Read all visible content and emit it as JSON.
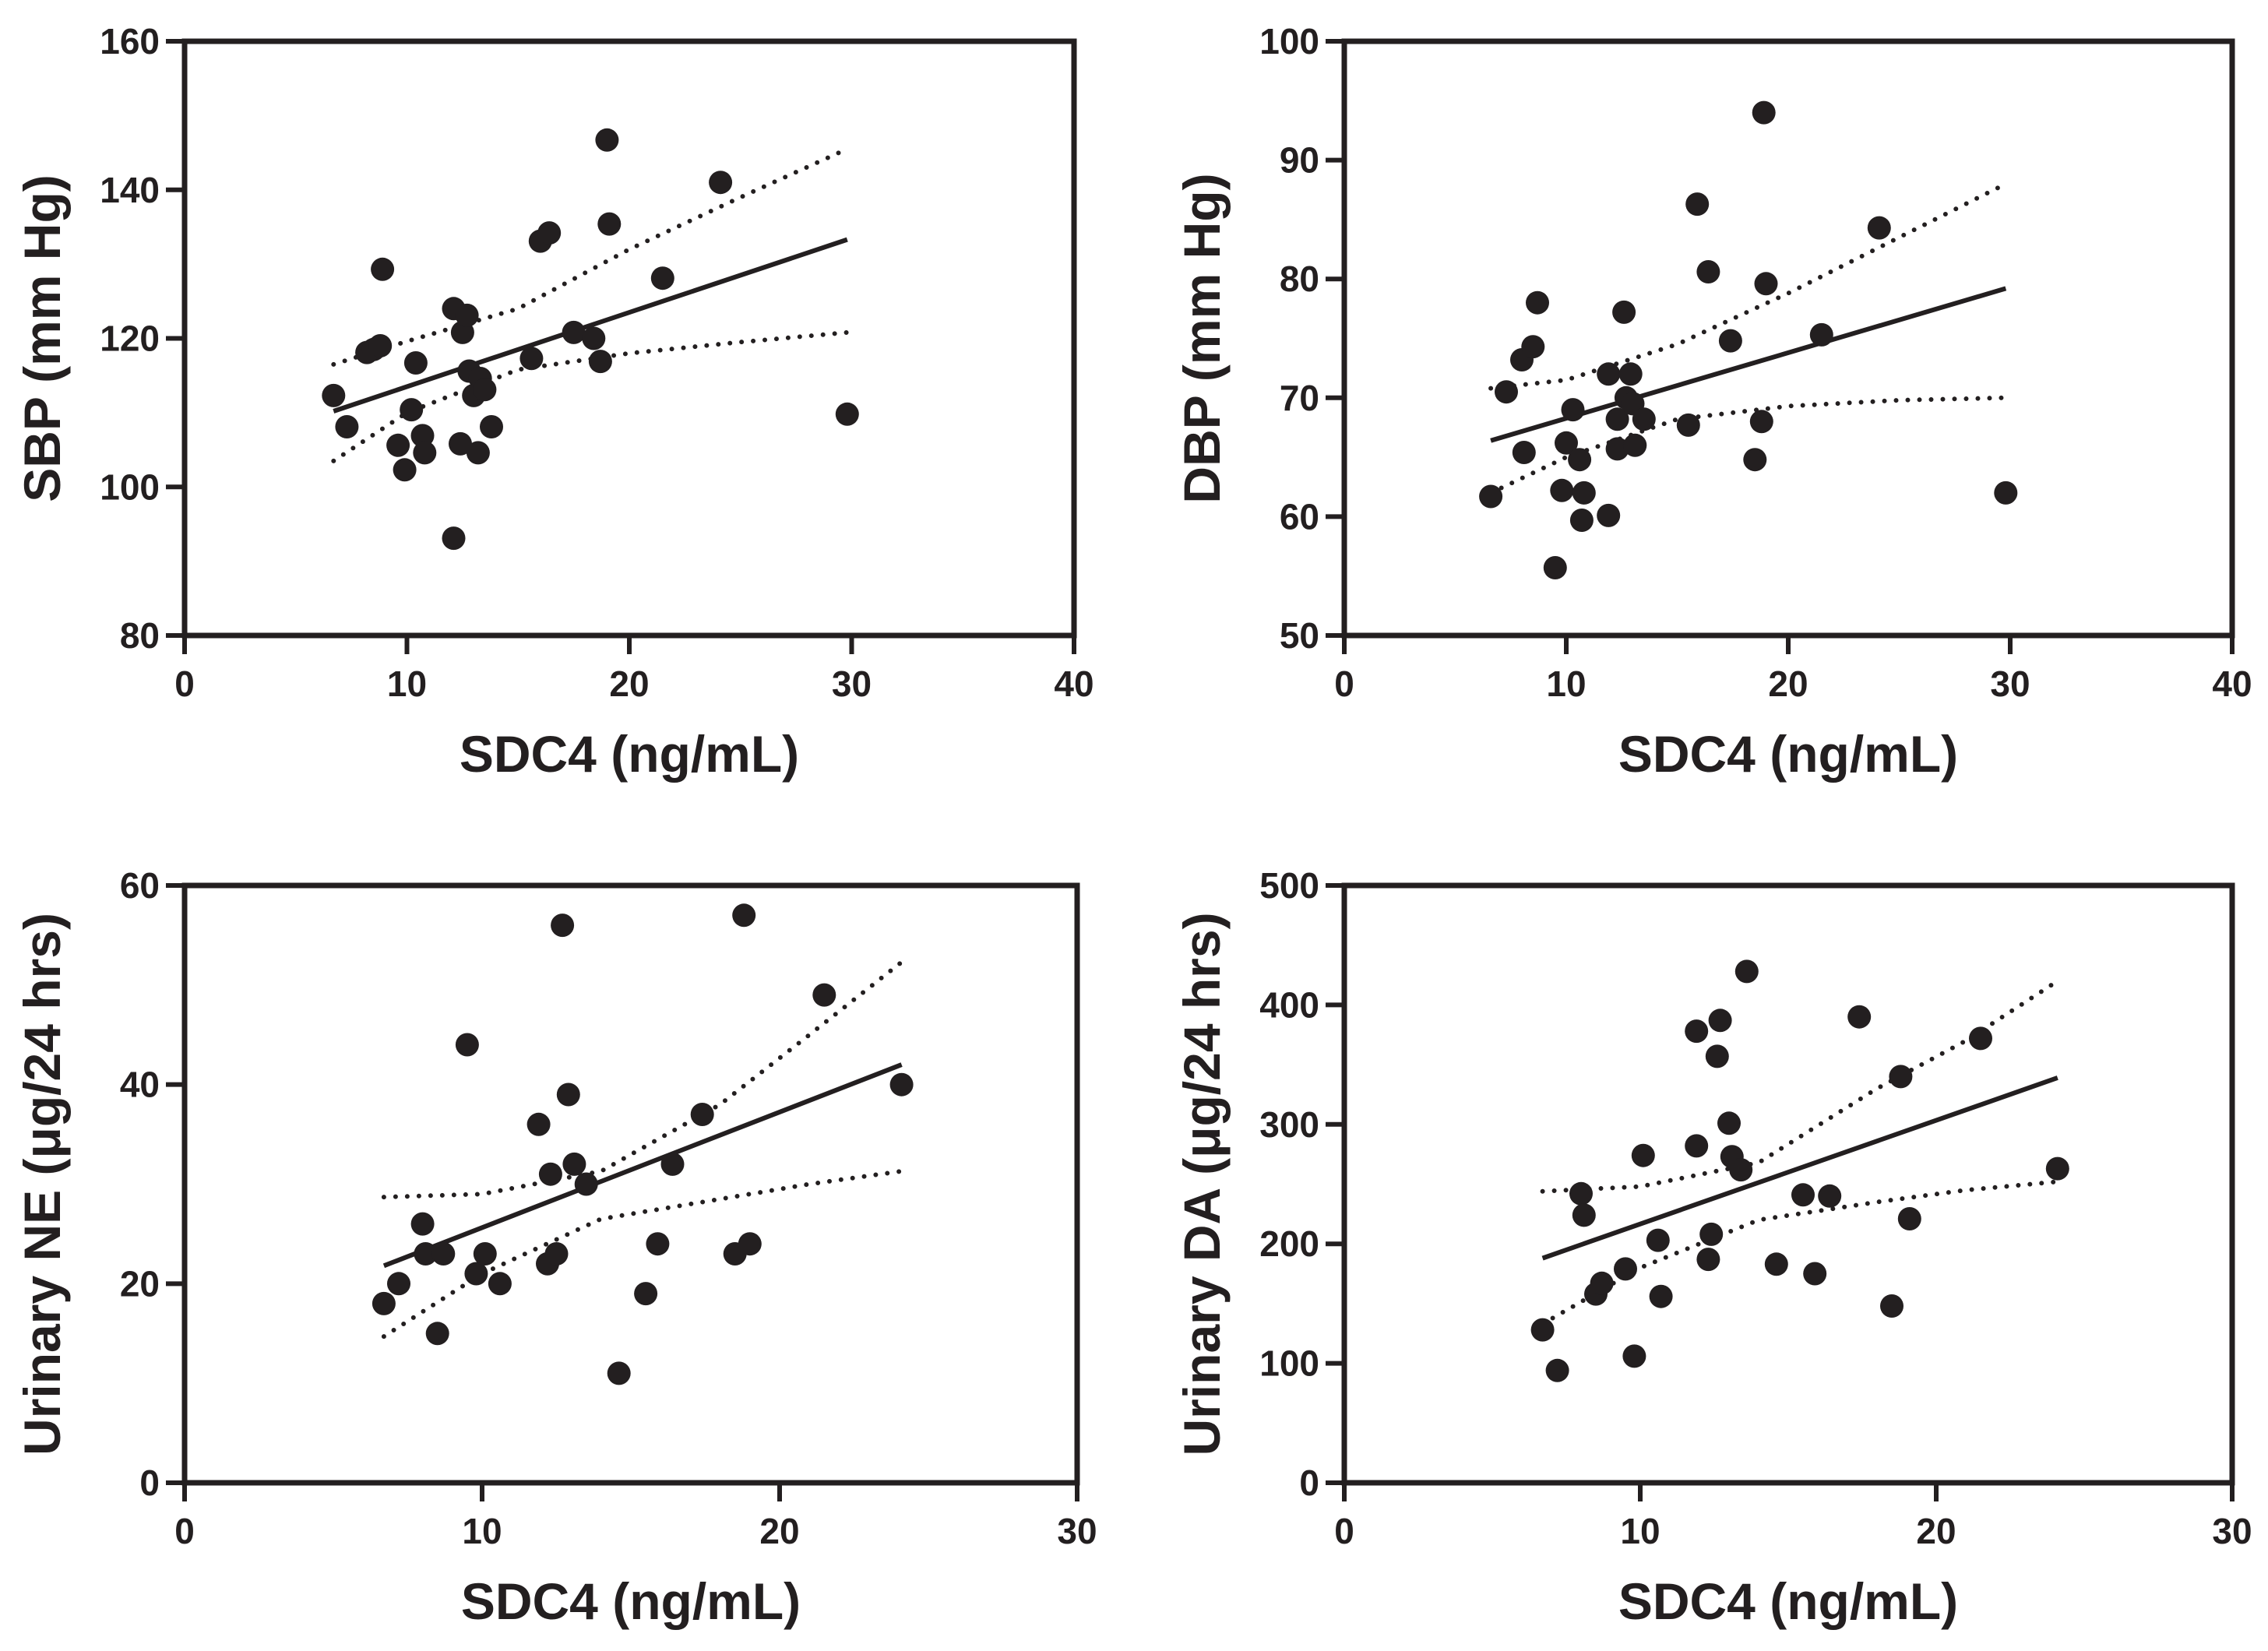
{
  "chart_data": [
    {
      "id": "sbp",
      "type": "scatter",
      "title": "",
      "xlabel": "SDC4 (ng/mL)",
      "ylabel": "SBP (mm Hg)",
      "xlim": [
        0,
        40
      ],
      "ylim": [
        80,
        160
      ],
      "xticks": [
        0,
        10,
        20,
        30,
        40
      ],
      "yticks": [
        80,
        100,
        120,
        140,
        160
      ],
      "x_tick_labels": [
        "0",
        "10",
        "20",
        "30",
        "40"
      ],
      "y_tick_labels": [
        "80",
        "100",
        "120",
        "140",
        "160"
      ],
      "points": [
        [
          6.7,
          112.3
        ],
        [
          7.3,
          108.1
        ],
        [
          8.2,
          118.1
        ],
        [
          8.5,
          118.5
        ],
        [
          8.8,
          119.0
        ],
        [
          8.9,
          129.3
        ],
        [
          9.6,
          105.6
        ],
        [
          9.9,
          102.3
        ],
        [
          10.2,
          110.4
        ],
        [
          10.4,
          116.7
        ],
        [
          10.7,
          106.9
        ],
        [
          10.8,
          104.6
        ],
        [
          12.1,
          124.0
        ],
        [
          12.1,
          93.1
        ],
        [
          12.4,
          105.8
        ],
        [
          12.5,
          120.8
        ],
        [
          12.7,
          123.1
        ],
        [
          12.8,
          115.6
        ],
        [
          13.0,
          112.3
        ],
        [
          13.2,
          104.6
        ],
        [
          13.3,
          114.6
        ],
        [
          13.5,
          113.1
        ],
        [
          13.8,
          108.1
        ],
        [
          15.6,
          117.3
        ],
        [
          16.0,
          133.1
        ],
        [
          16.4,
          134.2
        ],
        [
          17.5,
          120.8
        ],
        [
          18.4,
          120.0
        ],
        [
          18.7,
          116.9
        ],
        [
          19.0,
          146.7
        ],
        [
          19.1,
          135.4
        ],
        [
          21.5,
          128.1
        ],
        [
          24.1,
          141.0
        ],
        [
          29.8,
          109.8
        ]
      ],
      "fit": {
        "x": [
          6.7,
          29.8
        ],
        "y": [
          110.2,
          133.3
        ]
      },
      "ci_upper": {
        "x": [
          6.7,
          10.0,
          15.0,
          20.0,
          25.0,
          29.8
        ],
        "y": [
          116.5,
          119.6,
          124.0,
          132.0,
          139.0,
          145.5
        ]
      },
      "ci_lower": {
        "x": [
          6.7,
          10.0,
          15.0,
          20.0,
          25.0,
          29.8
        ],
        "y": [
          103.5,
          110.0,
          115.8,
          118.0,
          119.5,
          120.8
        ]
      }
    },
    {
      "id": "dbp",
      "type": "scatter",
      "title": "",
      "xlabel": "SDC4 (ng/mL)",
      "ylabel": "DBP (mm Hg)",
      "xlim": [
        0,
        40
      ],
      "ylim": [
        50,
        100
      ],
      "xticks": [
        0,
        10,
        20,
        30,
        40
      ],
      "yticks": [
        50,
        60,
        70,
        80,
        90,
        100
      ],
      "x_tick_labels": [
        "0",
        "10",
        "20",
        "30",
        "40"
      ],
      "y_tick_labels": [
        "50",
        "60",
        "70",
        "80",
        "90",
        "100"
      ],
      "points": [
        [
          6.6,
          61.7
        ],
        [
          7.3,
          70.5
        ],
        [
          8.0,
          73.2
        ],
        [
          8.1,
          65.4
        ],
        [
          8.5,
          74.3
        ],
        [
          8.7,
          78.0
        ],
        [
          9.5,
          55.7
        ],
        [
          9.8,
          62.2
        ],
        [
          10.0,
          66.2
        ],
        [
          10.3,
          69.0
        ],
        [
          10.6,
          64.8
        ],
        [
          10.7,
          59.7
        ],
        [
          10.8,
          62.0
        ],
        [
          11.9,
          72.0
        ],
        [
          11.9,
          60.1
        ],
        [
          12.3,
          65.7
        ],
        [
          12.3,
          68.2
        ],
        [
          12.6,
          77.2
        ],
        [
          12.7,
          70.0
        ],
        [
          12.9,
          72.0
        ],
        [
          13.0,
          69.5
        ],
        [
          13.1,
          66.0
        ],
        [
          13.5,
          68.2
        ],
        [
          15.5,
          67.7
        ],
        [
          15.9,
          86.3
        ],
        [
          16.4,
          80.6
        ],
        [
          17.4,
          74.8
        ],
        [
          18.5,
          64.8
        ],
        [
          18.8,
          68.0
        ],
        [
          18.9,
          94.0
        ],
        [
          19.0,
          79.6
        ],
        [
          21.5,
          75.3
        ],
        [
          24.1,
          84.3
        ],
        [
          29.8,
          62.0
        ]
      ],
      "fit": {
        "x": [
          6.6,
          29.8
        ],
        "y": [
          66.4,
          79.2
        ]
      },
      "ci_upper": {
        "x": [
          6.6,
          10.0,
          15.0,
          20.0,
          25.0,
          29.8
        ],
        "y": [
          70.8,
          71.5,
          74.5,
          78.8,
          83.5,
          88.0
        ]
      },
      "ci_lower": {
        "x": [
          6.6,
          10.0,
          15.0,
          20.0,
          25.0,
          29.8
        ],
        "y": [
          62.0,
          65.0,
          68.2,
          69.3,
          69.8,
          70.0
        ]
      }
    },
    {
      "id": "ne",
      "type": "scatter",
      "title": "",
      "xlabel": "SDC4 (ng/mL)",
      "ylabel": "Urinary NE (μg/24 hrs)",
      "xlim": [
        0,
        30
      ],
      "ylim": [
        0,
        60
      ],
      "xticks": [
        0,
        10,
        20,
        30
      ],
      "yticks": [
        0,
        20,
        40,
        60
      ],
      "x_tick_labels": [
        "0",
        "10",
        "20",
        "30"
      ],
      "y_tick_labels": [
        "0",
        "20",
        "40",
        "60"
      ],
      "points": [
        [
          6.7,
          18
        ],
        [
          7.2,
          20
        ],
        [
          8.0,
          26
        ],
        [
          8.1,
          23
        ],
        [
          8.5,
          15
        ],
        [
          8.7,
          23
        ],
        [
          9.5,
          44
        ],
        [
          9.8,
          21
        ],
        [
          10.1,
          23
        ],
        [
          10.6,
          20
        ],
        [
          11.9,
          36
        ],
        [
          12.2,
          22
        ],
        [
          12.3,
          31
        ],
        [
          12.5,
          23
        ],
        [
          12.7,
          56
        ],
        [
          12.9,
          39
        ],
        [
          13.1,
          32
        ],
        [
          13.5,
          30
        ],
        [
          14.6,
          11
        ],
        [
          15.5,
          19
        ],
        [
          15.9,
          24
        ],
        [
          16.4,
          32
        ],
        [
          17.4,
          37
        ],
        [
          18.5,
          23
        ],
        [
          18.8,
          57
        ],
        [
          19.0,
          24
        ],
        [
          21.5,
          49
        ],
        [
          24.1,
          40
        ]
      ],
      "fit": {
        "x": [
          6.7,
          24.1
        ],
        "y": [
          21.8,
          42.0
        ]
      },
      "ci_upper": {
        "x": [
          6.7,
          10.0,
          14.0,
          18.0,
          21.0,
          24.1
        ],
        "y": [
          28.7,
          29.0,
          31.3,
          38.0,
          45.0,
          52.3
        ]
      },
      "ci_lower": {
        "x": [
          6.7,
          10.0,
          14.0,
          18.0,
          21.0,
          24.1
        ],
        "y": [
          14.7,
          21.0,
          26.5,
          28.5,
          30.0,
          31.3
        ]
      }
    },
    {
      "id": "da",
      "type": "scatter",
      "title": "",
      "xlabel": "SDC4 (ng/mL)",
      "ylabel": "Urinary DA (μg/24 hrs)",
      "xlim": [
        0,
        30
      ],
      "ylim": [
        0,
        500
      ],
      "xticks": [
        0,
        10,
        20,
        30
      ],
      "yticks": [
        0,
        100,
        200,
        300,
        400,
        500
      ],
      "x_tick_labels": [
        "0",
        "10",
        "20",
        "30"
      ],
      "y_tick_labels": [
        "0",
        "100",
        "200",
        "300",
        "400",
        "500"
      ],
      "points": [
        [
          6.7,
          128
        ],
        [
          7.2,
          94
        ],
        [
          8.0,
          242
        ],
        [
          8.1,
          224
        ],
        [
          8.5,
          158
        ],
        [
          8.7,
          167
        ],
        [
          9.5,
          179
        ],
        [
          9.8,
          106
        ],
        [
          10.1,
          274
        ],
        [
          10.6,
          203
        ],
        [
          10.7,
          156
        ],
        [
          11.9,
          282
        ],
        [
          11.9,
          378
        ],
        [
          12.3,
          187
        ],
        [
          12.4,
          208
        ],
        [
          12.6,
          357
        ],
        [
          12.7,
          387
        ],
        [
          13.0,
          301
        ],
        [
          13.1,
          273
        ],
        [
          13.4,
          262
        ],
        [
          13.6,
          428
        ],
        [
          14.6,
          183
        ],
        [
          15.5,
          241
        ],
        [
          15.9,
          175
        ],
        [
          16.4,
          240
        ],
        [
          17.4,
          390
        ],
        [
          18.5,
          148
        ],
        [
          18.8,
          340
        ],
        [
          19.1,
          221
        ],
        [
          21.5,
          372
        ],
        [
          24.1,
          263
        ]
      ],
      "fit": {
        "x": [
          6.7,
          24.1
        ],
        "y": [
          188,
          339
        ]
      },
      "ci_upper": {
        "x": [
          6.7,
          10.0,
          14.0,
          18.0,
          21.0,
          24.1
        ],
        "y": [
          244,
          248,
          268,
          330,
          370,
          420
        ]
      },
      "ci_lower": {
        "x": [
          6.7,
          10.0,
          14.0,
          18.0,
          21.0,
          24.1
        ],
        "y": [
          133,
          180,
          220,
          235,
          245,
          252
        ]
      }
    }
  ]
}
